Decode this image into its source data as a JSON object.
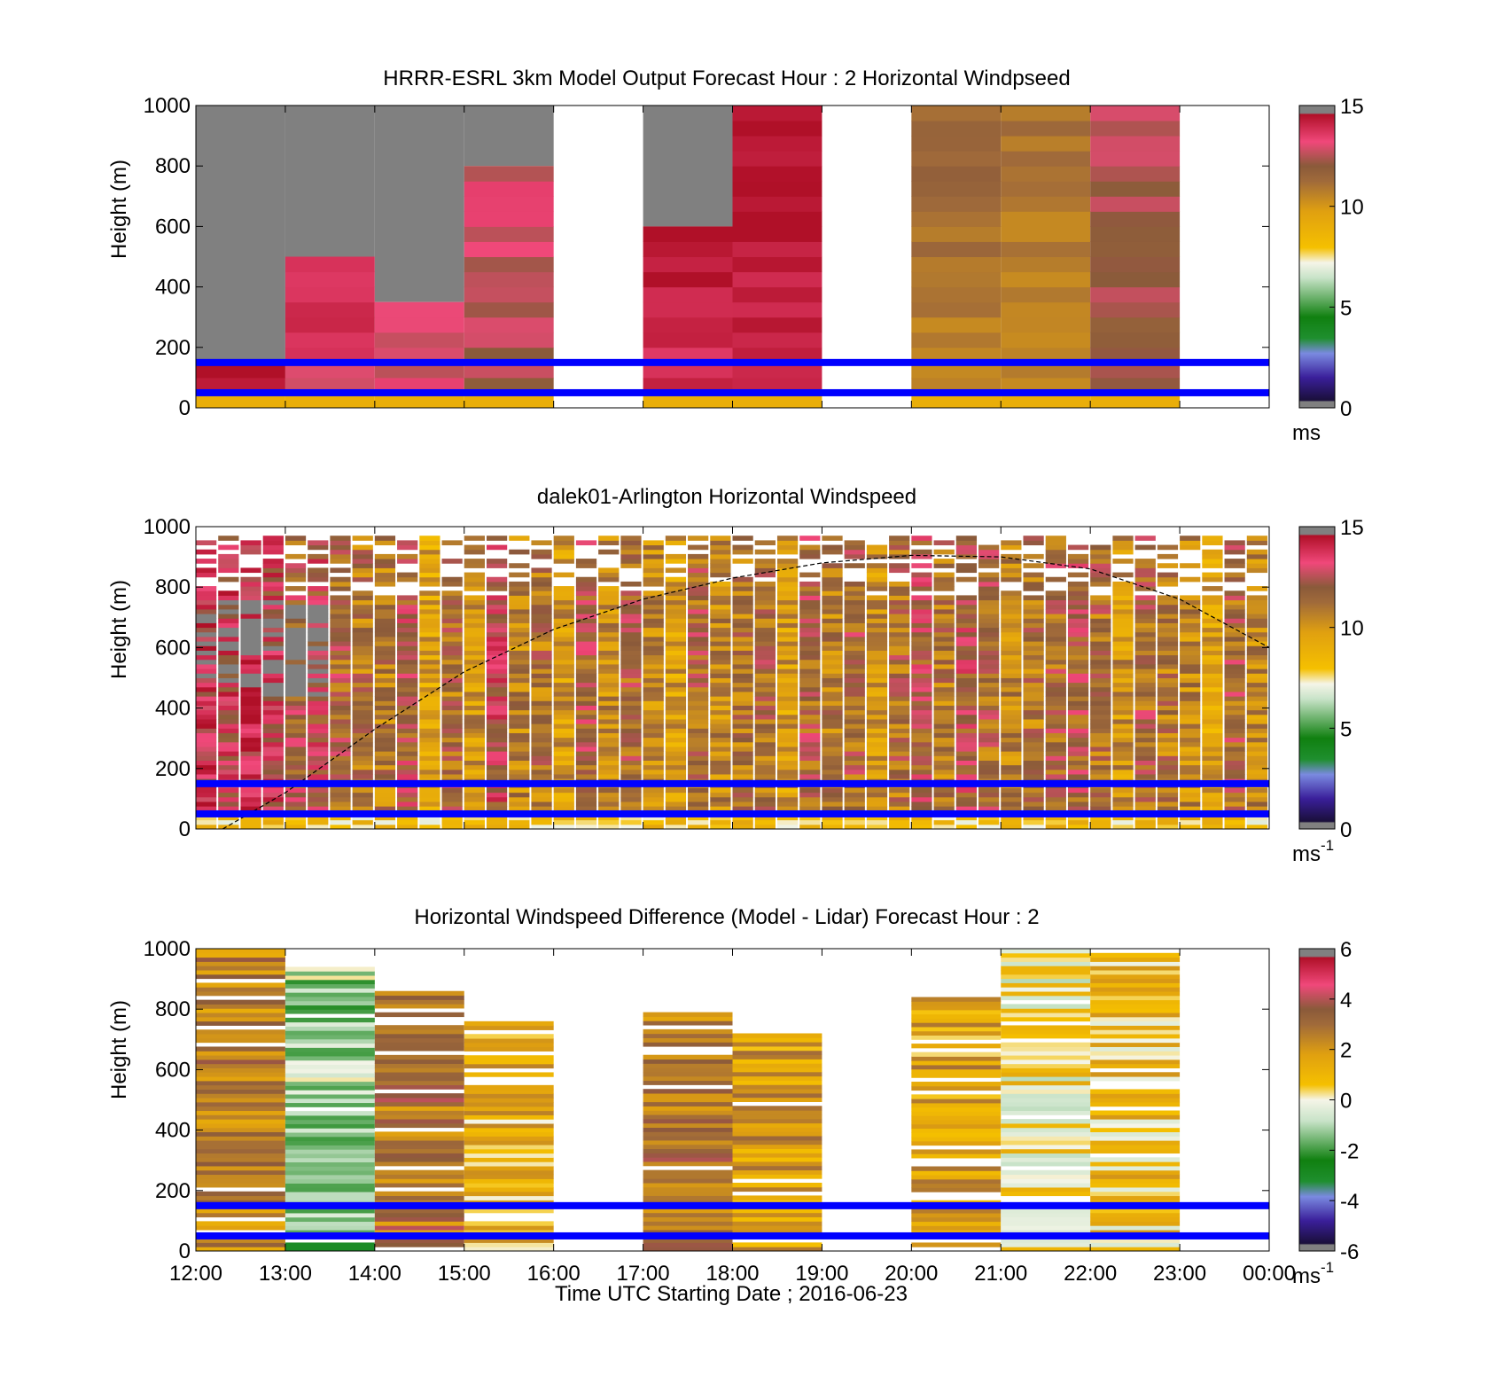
{
  "chart_data": [
    {
      "type": "heatmap",
      "title": "HRRR-ESRL 3km Model Output   Forecast Hour : 2 Horizontal Windpseed",
      "ylabel": "Height (m)",
      "xlabel": "",
      "ylim": [
        0,
        1000
      ],
      "xlim": [
        12,
        24
      ],
      "yticks": [
        "0",
        "200",
        "400",
        "600",
        "800",
        "1000"
      ],
      "colorbar": {
        "range": [
          0,
          15
        ],
        "ticks": [
          "0",
          "5",
          "10",
          "15"
        ],
        "unit_label": "ms"
      },
      "reference_lines": [
        50,
        150
      ],
      "reference_line_color": "#0000ff",
      "gray_above": [
        150,
        500,
        350,
        800,
        null,
        600,
        1000,
        null,
        1000,
        1000,
        1000,
        null
      ],
      "columns": [
        {
          "hour": 12,
          "top": 150,
          "value": 14.0
        },
        {
          "hour": 13,
          "top": 500,
          "value": 13.5
        },
        {
          "hour": 14,
          "top": 350,
          "value": 13.0
        },
        {
          "hour": 15,
          "top": 800,
          "value": 12.5
        },
        {
          "hour": 16,
          "top": 0,
          "value": null
        },
        {
          "hour": 17,
          "top": 600,
          "value": 14.0
        },
        {
          "hour": 18,
          "top": 1000,
          "value": 14.3
        },
        {
          "hour": 19,
          "top": 0,
          "value": null
        },
        {
          "hour": 20,
          "top": 1000,
          "value": 11.0
        },
        {
          "hour": 21,
          "top": 1000,
          "value": 10.8
        },
        {
          "hour": 22,
          "top": 1000,
          "value": 12.2
        },
        {
          "hour": 23,
          "top": 0,
          "value": null
        }
      ]
    },
    {
      "type": "heatmap",
      "title": "dalek01-Arlington  Horizontal Windspeed",
      "ylabel": "Height (m)",
      "xlabel": "",
      "ylim": [
        0,
        1000
      ],
      "xlim": [
        12,
        24
      ],
      "yticks": [
        "0",
        "200",
        "400",
        "600",
        "800",
        "1000"
      ],
      "colorbar": {
        "range": [
          0,
          15
        ],
        "ticks": [
          "0",
          "5",
          "10",
          "15"
        ],
        "unit_label": "ms",
        "unit_superscript": "-1"
      },
      "reference_lines": [
        50,
        150
      ],
      "reference_line_color": "#0000ff",
      "boundary_layer_curve": {
        "hours": [
          12.3,
          13.0,
          14.0,
          15.0,
          16.0,
          17.0,
          18.0,
          19.0,
          20.0,
          21.0,
          22.0,
          23.0,
          24.0
        ],
        "heights": [
          0,
          120,
          330,
          520,
          660,
          760,
          830,
          880,
          905,
          900,
          860,
          760,
          600
        ]
      },
      "column_values": [
        13.5,
        13.0,
        13.8,
        12.8,
        11.8,
        12.5,
        11.5,
        11.0,
        10.8,
        12.0,
        9.5,
        11.2,
        10.0,
        12.5,
        10.6,
        11.0,
        9.8,
        11.8,
        10.2,
        11.5,
        10.5,
        9.6,
        11.4,
        10.4,
        11.0,
        11.3,
        9.8,
        11.6,
        10.8,
        11.5,
        10.2,
        11.2,
        12.0,
        11.0,
        12.2,
        11.4,
        10.5,
        11.0,
        11.5,
        11.8,
        11.2,
        10.0,
        11.5,
        11.0,
        10.5,
        9.5,
        11.5,
        10.4
      ]
    },
    {
      "type": "heatmap",
      "title": "Horizontal Windspeed Difference (Model - Lidar) Forecast Hour : 2",
      "ylabel": "Height (m)",
      "xlabel": "Time UTC  Starting Date ; 2016-06-23",
      "ylim": [
        0,
        1000
      ],
      "xlim": [
        12,
        24
      ],
      "xticks": [
        "12:00",
        "13:00",
        "14:00",
        "15:00",
        "16:00",
        "17:00",
        "18:00",
        "19:00",
        "20:00",
        "21:00",
        "22:00",
        "23:00",
        "00:00"
      ],
      "yticks": [
        "0",
        "200",
        "400",
        "600",
        "800",
        "1000"
      ],
      "colorbar": {
        "range": [
          -6,
          6
        ],
        "ticks": [
          "-6",
          "-4",
          "-2",
          "0",
          "2",
          "4",
          "6"
        ],
        "unit_label": "ms",
        "unit_superscript": "-1"
      },
      "reference_lines": [
        50,
        150
      ],
      "reference_line_color": "#0000ff",
      "columns": [
        {
          "hour": 12,
          "top": 1000,
          "mean": 2.5
        },
        {
          "hour": 13,
          "top": 940,
          "mean": -1.0
        },
        {
          "hour": 14,
          "top": 860,
          "mean": 2.8
        },
        {
          "hour": 15,
          "top": 760,
          "mean": 1.2
        },
        {
          "hour": 16,
          "top": 0,
          "mean": null
        },
        {
          "hour": 17,
          "top": 790,
          "mean": 2.8
        },
        {
          "hour": 18,
          "top": 720,
          "mean": 1.8
        },
        {
          "hour": 19,
          "top": 0,
          "mean": null
        },
        {
          "hour": 20,
          "top": 840,
          "mean": 1.6
        },
        {
          "hour": 21,
          "top": 1000,
          "mean": 0.2
        },
        {
          "hour": 22,
          "top": 1000,
          "mean": 0.8
        },
        {
          "hour": 23,
          "top": 0,
          "mean": null
        }
      ]
    }
  ]
}
